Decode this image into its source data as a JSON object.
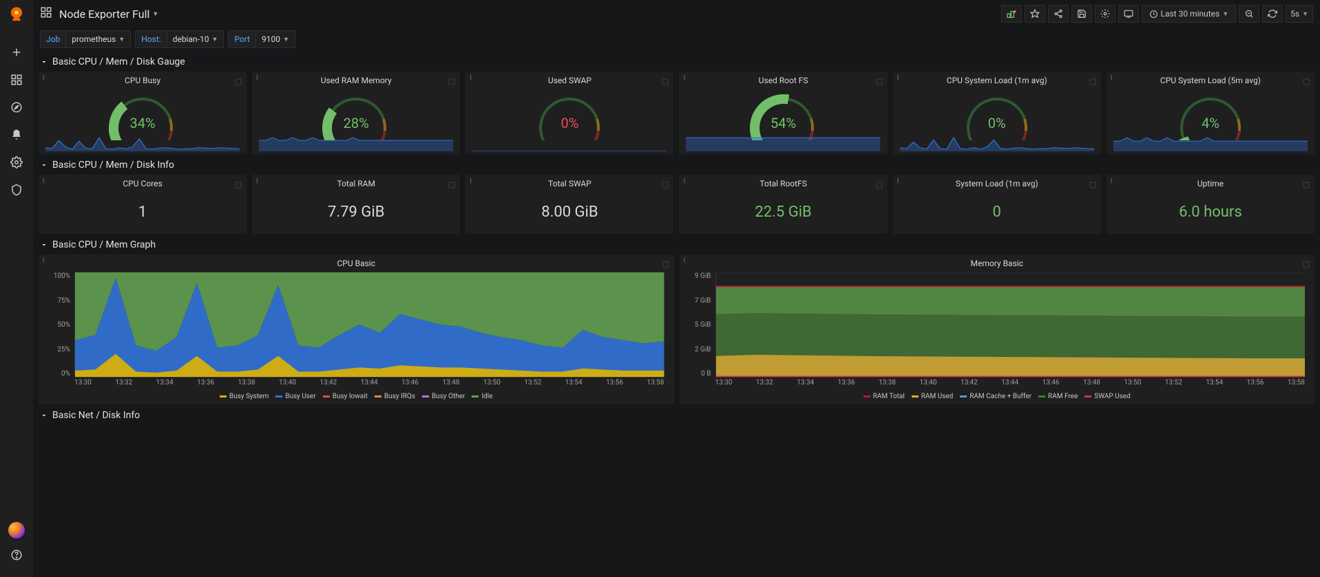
{
  "colors": {
    "green": "#73bf69",
    "yellow": "#fade2a",
    "orange": "#ff9830",
    "red": "#f2495c",
    "blue": "#5794f2",
    "spark": "#3274d9",
    "spark_fill": "rgba(50,116,217,0.35)",
    "grid": "#2c2c2e",
    "stat_green": "#73bf69",
    "cpu_idle": "#629e51",
    "cpu_system": "#e0b400",
    "cpu_user": "#3274d9",
    "cpu_iowait": "#e24d42",
    "cpu_irqs": "#ef843c",
    "cpu_other": "#b877d9",
    "mem_total": "#c4162a",
    "mem_used": "#e0b400",
    "mem_cache": "#5794f2",
    "mem_free": "#37872d",
    "swap_used": "#e02f44",
    "mem_area_top": "#508642",
    "mem_area_mid": "#3f6833",
    "mem_area_low": "#c09c34"
  },
  "header": {
    "title": "Node Exporter Full",
    "time_range": "Last 30 minutes",
    "refresh_interval": "5s"
  },
  "vars": [
    {
      "label": "Job",
      "value": "prometheus"
    },
    {
      "label": "Host:",
      "value": "debian-10"
    },
    {
      "label": "Port",
      "value": "9100"
    }
  ],
  "rows": {
    "r1": "Basic CPU / Mem / Disk Gauge",
    "r2": "Basic CPU / Mem / Disk Info",
    "r3": "Basic CPU / Mem Graph",
    "r4": "Basic Net / Disk Info"
  },
  "gauges": [
    {
      "title": "CPU Busy",
      "value": "34%",
      "pct": 34,
      "color": "#73bf69"
    },
    {
      "title": "Used RAM Memory",
      "value": "28%",
      "pct": 28,
      "color": "#73bf69"
    },
    {
      "title": "Used SWAP",
      "value": "0%",
      "pct": 0,
      "color": "#f2495c"
    },
    {
      "title": "Used Root FS",
      "value": "54%",
      "pct": 54,
      "color": "#73bf69"
    },
    {
      "title": "CPU System Load (1m avg)",
      "value": "0%",
      "pct": 0,
      "color": "#73bf69"
    },
    {
      "title": "CPU System Load (5m avg)",
      "value": "4%",
      "pct": 4,
      "color": "#73bf69"
    }
  ],
  "stats": [
    {
      "title": "CPU Cores",
      "value": "1",
      "color": "#d8d9da"
    },
    {
      "title": "Total RAM",
      "value": "7.79 GiB",
      "color": "#d8d9da"
    },
    {
      "title": "Total SWAP",
      "value": "8.00 GiB",
      "color": "#d8d9da"
    },
    {
      "title": "Total RootFS",
      "value": "22.5 GiB",
      "color": "#73bf69"
    },
    {
      "title": "System Load (1m avg)",
      "value": "0",
      "color": "#73bf69"
    },
    {
      "title": "Uptime",
      "value": "6.0 hours",
      "color": "#73bf69"
    }
  ],
  "cpu_chart": {
    "title": "CPU Basic",
    "y_ticks": [
      "100%",
      "75%",
      "50%",
      "25%",
      "0%"
    ],
    "x_ticks": [
      "13:30",
      "13:32",
      "13:34",
      "13:36",
      "13:38",
      "13:40",
      "13:42",
      "13:44",
      "13:46",
      "13:48",
      "13:50",
      "13:52",
      "13:54",
      "13:56",
      "13:58"
    ],
    "legend": [
      {
        "label": "Busy System",
        "color": "#e0b400"
      },
      {
        "label": "Busy User",
        "color": "#3274d9"
      },
      {
        "label": "Busy Iowait",
        "color": "#e24d42"
      },
      {
        "label": "Busy IRQs",
        "color": "#ef843c"
      },
      {
        "label": "Busy Other",
        "color": "#b877d9"
      },
      {
        "label": "Idle",
        "color": "#629e51"
      }
    ],
    "busy_pct": [
      35,
      40,
      95,
      30,
      25,
      38,
      90,
      28,
      30,
      40,
      88,
      30,
      28,
      40,
      50,
      42,
      60,
      55,
      50,
      48,
      42,
      38,
      35,
      30,
      28,
      45,
      38,
      35,
      32,
      34
    ],
    "system_pct": [
      6,
      7,
      22,
      5,
      4,
      6,
      20,
      5,
      5,
      7,
      20,
      5,
      5,
      7,
      9,
      8,
      11,
      10,
      9,
      9,
      8,
      7,
      6,
      5,
      5,
      8,
      7,
      6,
      6,
      6
    ]
  },
  "mem_chart": {
    "title": "Memory Basic",
    "y_ticks": [
      "9 GiB",
      "7 GiB",
      "5 GiB",
      "2 GiB",
      "0 B"
    ],
    "x_ticks": [
      "13:30",
      "13:32",
      "13:34",
      "13:36",
      "13:38",
      "13:40",
      "13:42",
      "13:44",
      "13:46",
      "13:48",
      "13:50",
      "13:52",
      "13:54",
      "13:56",
      "13:58"
    ],
    "legend": [
      {
        "label": "RAM Total",
        "color": "#c4162a"
      },
      {
        "label": "RAM Used",
        "color": "#e0b400"
      },
      {
        "label": "RAM Cache + Buffer",
        "color": "#5794f2"
      },
      {
        "label": "RAM Free",
        "color": "#37872d"
      },
      {
        "label": "SWAP Used",
        "color": "#e02f44"
      }
    ],
    "total_gib": 7.79,
    "ymax_gib": 9,
    "used_gib": [
      1.8,
      1.85,
      1.9,
      1.88,
      1.86,
      1.84,
      1.82,
      1.8,
      1.78,
      1.77,
      1.76,
      1.75,
      1.74,
      1.73,
      1.72,
      1.71,
      1.7,
      1.69,
      1.68,
      1.67,
      1.66,
      1.65,
      1.64,
      1.63,
      1.62,
      1.61,
      1.6,
      1.6,
      1.6,
      1.6
    ],
    "cache_gib": [
      3.6,
      3.6,
      3.6,
      3.6,
      3.6,
      3.6,
      3.6,
      3.6,
      3.6,
      3.6,
      3.6,
      3.6,
      3.6,
      3.6,
      3.6,
      3.6,
      3.6,
      3.6,
      3.6,
      3.6,
      3.6,
      3.6,
      3.6,
      3.6,
      3.6,
      3.6,
      3.6,
      3.6,
      3.6,
      3.6
    ]
  },
  "spark_series": [
    [
      10,
      8,
      30,
      12,
      6,
      28,
      9,
      7,
      38,
      8,
      6,
      10,
      7,
      12,
      35,
      8,
      6,
      9,
      10,
      8,
      6,
      7,
      8,
      10,
      9,
      8,
      10,
      9,
      8,
      7
    ],
    [
      4,
      4,
      5,
      4,
      4,
      5,
      4,
      4,
      5,
      4,
      4,
      4,
      4,
      4,
      5,
      4,
      4,
      4,
      4,
      4,
      4,
      4,
      4,
      4,
      4,
      4,
      4,
      4,
      4,
      4
    ],
    [
      0,
      0,
      0,
      0,
      0,
      0,
      0,
      0,
      0,
      0,
      0,
      0,
      0,
      0,
      0,
      0,
      0,
      0,
      0,
      0,
      0,
      0,
      0,
      0,
      0,
      0,
      0,
      0,
      0,
      0
    ],
    [
      4,
      4,
      4,
      4,
      4,
      4,
      4,
      4,
      4,
      4,
      4,
      4,
      4,
      4,
      4,
      4,
      4,
      4,
      4,
      4,
      4,
      4,
      4,
      4,
      4,
      4,
      4,
      4,
      4,
      4
    ],
    [
      8,
      6,
      20,
      8,
      5,
      25,
      6,
      5,
      30,
      6,
      5,
      8,
      5,
      10,
      25,
      6,
      5,
      7,
      8,
      6,
      5,
      6,
      6,
      8,
      7,
      6,
      8,
      7,
      6,
      5
    ],
    [
      3,
      3,
      4,
      3,
      3,
      4,
      3,
      3,
      4,
      3,
      3,
      3,
      3,
      3,
      4,
      3,
      3,
      3,
      3,
      3,
      3,
      3,
      3,
      3,
      3,
      3,
      3,
      3,
      3,
      3
    ]
  ]
}
